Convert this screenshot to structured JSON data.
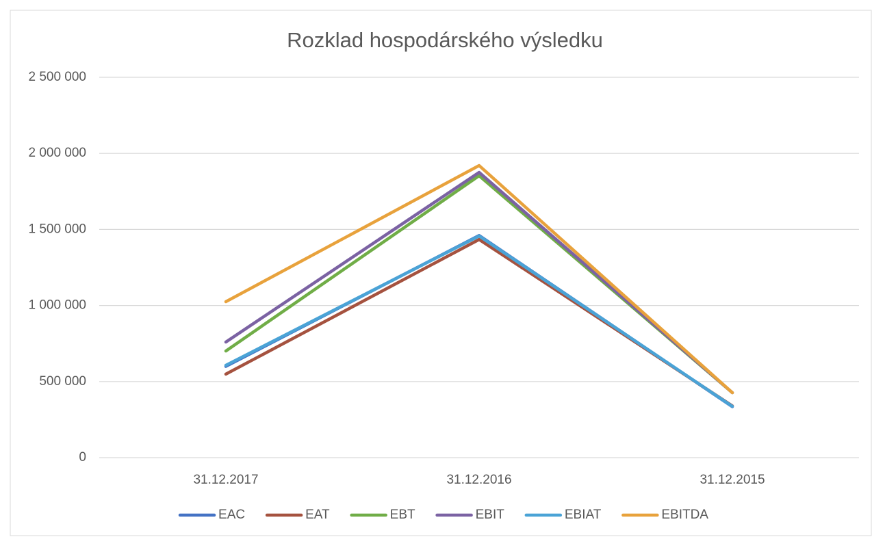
{
  "chart_data": {
    "type": "line",
    "title": "Rozklad hospodárského výsledku",
    "categories": [
      "31.12.2017",
      "31.12.2016",
      "31.12.2015"
    ],
    "series": [
      {
        "name": "EAC",
        "color": "#4472c4",
        "values": [
          600000,
          1460000,
          335000
        ]
      },
      {
        "name": "EAT",
        "color": "#a5523f",
        "values": [
          549000,
          1434000,
          340000
        ]
      },
      {
        "name": "EBT",
        "color": "#70ad47",
        "values": [
          701000,
          1853000,
          427000
        ]
      },
      {
        "name": "EBIT",
        "color": "#7b62a3",
        "values": [
          760000,
          1875000,
          427000
        ]
      },
      {
        "name": "EBIAT",
        "color": "#4aa3d6",
        "values": [
          607000,
          1457000,
          337000
        ]
      },
      {
        "name": "EBITDA",
        "color": "#e8a23c",
        "values": [
          1025000,
          1920000,
          427000
        ]
      }
    ],
    "ylim": [
      0,
      2500000
    ],
    "yticks": [
      0,
      {
        "value": 500000,
        "label": "500 000"
      },
      {
        "value": 1000000,
        "label": "1 000 000"
      },
      {
        "value": 1500000,
        "label": "1 500 000"
      },
      {
        "value": 2000000,
        "label": "2 000 000"
      },
      {
        "value": 2500000,
        "label": "2 500 000"
      }
    ],
    "grid": true,
    "legend": "bottom"
  }
}
